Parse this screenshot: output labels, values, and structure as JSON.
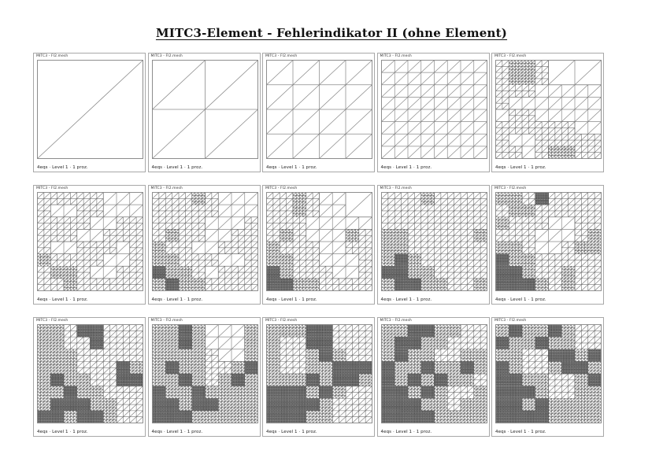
{
  "page": {
    "title": "MITC3-Element - Fehlerindikator II (ohne Element)"
  },
  "panel_labels": {
    "top": "MITC3 - FI2.mesh",
    "bottom": "4eqs · Level 1 · 1 proz."
  },
  "mesh_colors": {
    "border": "#888888",
    "coarse_line": "#8a8a8a",
    "mid_line": "#707070",
    "fine_line": "#606060",
    "dense_line": "#3d3d3d"
  },
  "panels": [
    {
      "id": 1,
      "depth_map": [
        "00000000",
        "00000000",
        "00000000",
        "00000000",
        "00000000",
        "00000000",
        "00000000",
        "00000000"
      ]
    },
    {
      "id": 2,
      "depth_map": [
        "11111111",
        "11111111",
        "11111111",
        "11111111",
        "11111111",
        "11111111",
        "11111111",
        "11111111"
      ]
    },
    {
      "id": 3,
      "depth_map": [
        "22222222",
        "22222222",
        "22222222",
        "22222222",
        "22222222",
        "22222222",
        "22222222",
        "22222222"
      ]
    },
    {
      "id": 4,
      "depth_map": [
        "33333333",
        "33333333",
        "33333333",
        "33333333",
        "33333333",
        "33333333",
        "33333333",
        "33333333"
      ]
    },
    {
      "id": 5,
      "depth_map": [
        "45542222",
        "45542222",
        "44432222",
        "43333333",
        "34433333",
        "44444433",
        "43344444",
        "44345544"
      ]
    },
    {
      "id": 6,
      "depth_map": [
        "44444322",
        "43344333",
        "44443344",
        "44433444",
        "43344434",
        "54444334",
        "45543344",
        "44544444"
      ]
    },
    {
      "id": 7,
      "depth_map": [
        "44454332",
        "44444322",
        "44443334",
        "45443344",
        "54433444",
        "55444334",
        "65543444",
        "56554444"
      ]
    },
    {
      "id": 8,
      "depth_map": [
        "44543222",
        "44543222",
        "44433222",
        "45433354",
        "54443344",
        "55443334",
        "65444334",
        "66554444"
      ]
    },
    {
      "id": 9,
      "depth_map": [
        "44454444",
        "44444444",
        "44444444",
        "55444445",
        "55444444",
        "56544444",
        "66554444",
        "56655445"
      ]
    },
    {
      "id": 10,
      "depth_map": [
        "55464444",
        "45544444",
        "54443344",
        "44433345",
        "55433455",
        "65544444",
        "66544544",
        "66654544"
      ]
    },
    {
      "id": 11,
      "depth_map": [
        "55466444",
        "55446444",
        "55544444",
        "55544465",
        "56554466",
        "55655444",
        "56665544",
        "66566544"
      ]
    },
    {
      "id": 12,
      "depth_map": [
        "55653335",
        "55653335",
        "55554335",
        "56554456",
        "55654565",
        "65565555",
        "66566555",
        "66655555"
      ]
    },
    {
      "id": 13,
      "depth_map": [
        "55566444",
        "54466444",
        "54456544",
        "54455666",
        "55565665",
        "66656544",
        "66665444",
        "66655444"
      ]
    },
    {
      "id": 14,
      "depth_map": [
        "55665544",
        "56655444",
        "56554455",
        "65565565",
        "65656554",
        "66565445",
        "66655455",
        "66665555"
      ]
    },
    {
      "id": 15,
      "depth_map": [
        "56556544",
        "65565544",
        "55446656",
        "65445665",
        "66554456",
        "66654455",
        "66565555",
        "66665555"
      ]
    }
  ]
}
